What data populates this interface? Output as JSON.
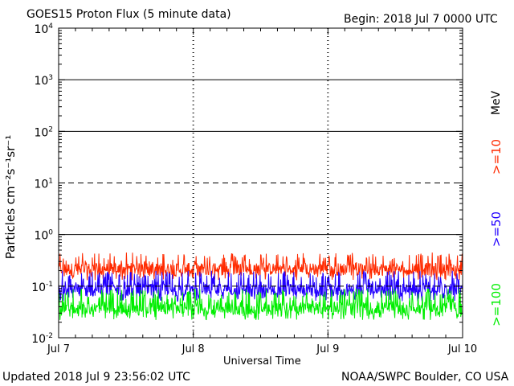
{
  "header": {
    "title": "GOES15 Proton Flux (5 minute data)",
    "begin": "Begin: 2018 Jul 7 0000 UTC"
  },
  "footer": {
    "updated": "Updated 2018 Jul  9 23:56:02 UTC",
    "credit": "NOAA/SWPC Boulder, CO USA"
  },
  "axes": {
    "xlabel": "Universal Time",
    "ylabel_text": "Particles cm⁻²s⁻¹sr⁻¹",
    "unit": "MeV"
  },
  "colors": {
    "ge10": "#ff2a00",
    "ge50": "#2200ff",
    "ge100": "#00ee00",
    "grid": "#000000"
  },
  "chart_data": {
    "type": "line",
    "scale": "log",
    "ylim": [
      0.01,
      10000
    ],
    "y_ticks": [
      {
        "value": 0.01,
        "base": "10",
        "exp": "-2"
      },
      {
        "value": 0.1,
        "base": "10",
        "exp": "-1"
      },
      {
        "value": 1,
        "base": "10",
        "exp": "0"
      },
      {
        "value": 10,
        "base": "10",
        "exp": "1"
      },
      {
        "value": 100,
        "base": "10",
        "exp": "2"
      },
      {
        "value": 1000,
        "base": "10",
        "exp": "3"
      },
      {
        "value": 10000,
        "base": "10",
        "exp": "4"
      }
    ],
    "x_ticks": [
      "Jul 7",
      "Jul 8",
      "Jul 9",
      "Jul 10"
    ],
    "xlim_days": [
      0,
      3
    ],
    "solid_levels": [
      1,
      100,
      1000
    ],
    "dashed_levels": [
      0.1,
      10
    ],
    "series": [
      {
        "name": ">=10",
        "color": "#ff2a00",
        "baseline": 0.2,
        "low": 0.13,
        "high": 0.45
      },
      {
        "name": ">=50",
        "color": "#2200ff",
        "baseline": 0.08,
        "low": 0.05,
        "high": 0.2
      },
      {
        "name": ">=100",
        "color": "#00ee00",
        "baseline": 0.035,
        "low": 0.022,
        "high": 0.09
      }
    ]
  }
}
